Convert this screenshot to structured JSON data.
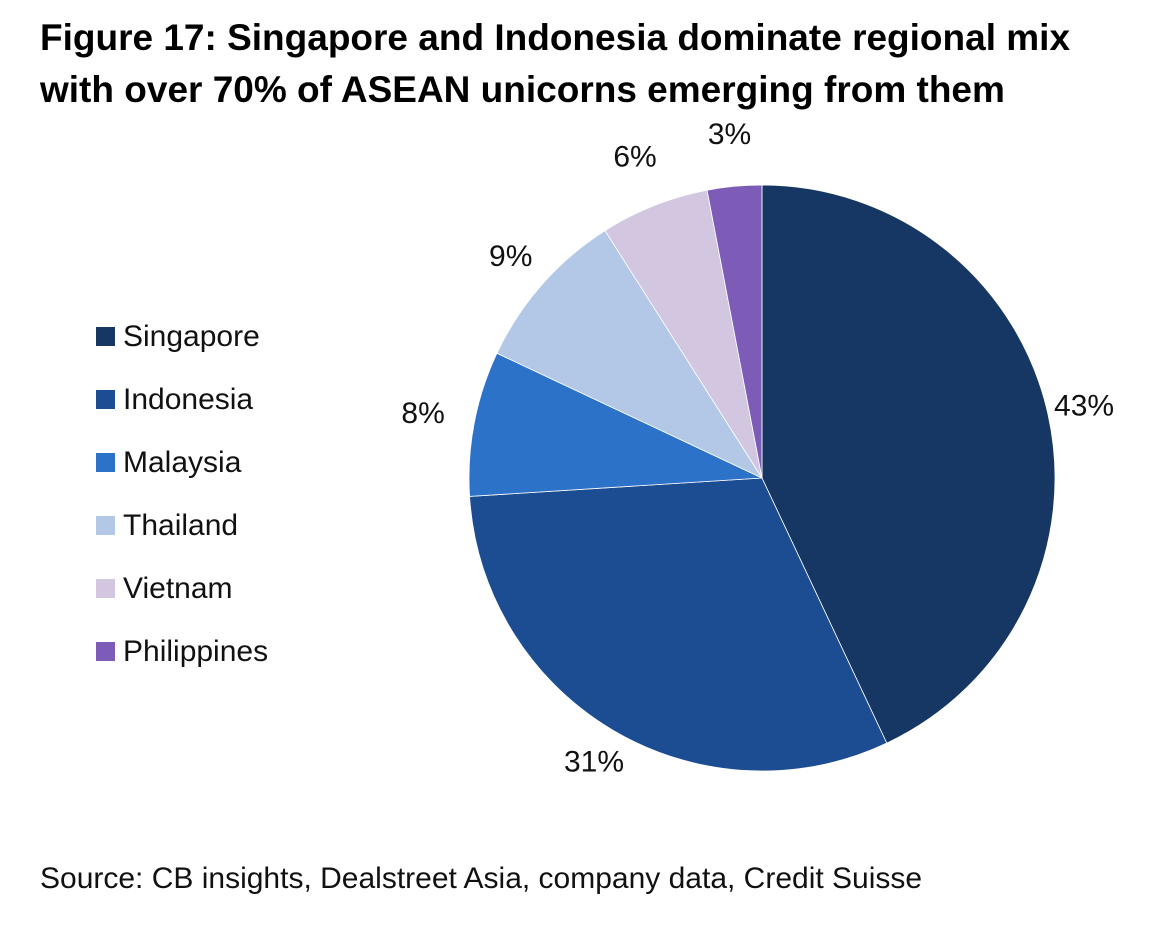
{
  "title_line1": "Figure 17: Singapore and Indonesia dominate regional mix",
  "title_line2": "with over 70% of ASEAN unicorns emerging from them",
  "source": "Source: CB insights, Dealstreet Asia, company data, Credit Suisse",
  "chart_data": {
    "type": "pie",
    "title": "Figure 17: Singapore and Indonesia dominate regional mix with over 70% of ASEAN unicorns emerging from them",
    "legend_position": "left",
    "start": "12 o'clock",
    "direction": "clockwise",
    "slices": [
      {
        "name": "Singapore",
        "value": 43,
        "label": "43%",
        "color": "#163663"
      },
      {
        "name": "Indonesia",
        "value": 31,
        "label": "31%",
        "color": "#1c4d93"
      },
      {
        "name": "Malaysia",
        "value": 8,
        "label": "8%",
        "color": "#2c72c8"
      },
      {
        "name": "Thailand",
        "value": 9,
        "label": "9%",
        "color": "#b3c8e6"
      },
      {
        "name": "Vietnam",
        "value": 6,
        "label": "6%",
        "color": "#d2c6e0"
      },
      {
        "name": "Philippines",
        "value": 3,
        "label": "3%",
        "color": "#7c5cb6"
      }
    ]
  }
}
